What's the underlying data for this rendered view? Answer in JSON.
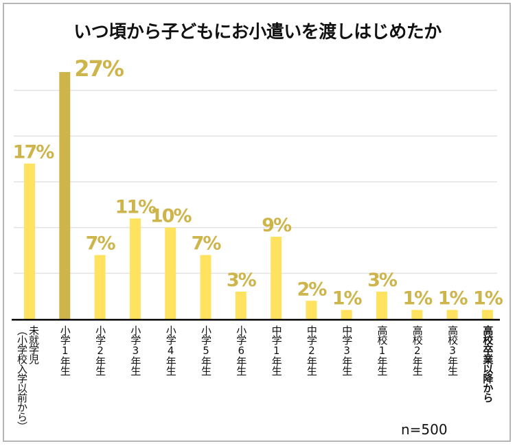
{
  "chart_data": {
    "type": "bar",
    "title": "いつ頃から子どもにお小遣いを渡しはじめたか",
    "categories": [
      [
        "未就学児",
        "（小学校入学以前から）"
      ],
      [
        "小学1年生"
      ],
      [
        "小学2年生"
      ],
      [
        "小学3年生"
      ],
      [
        "小学4年生"
      ],
      [
        "小学5年生"
      ],
      [
        "小学6年生"
      ],
      [
        "中学1年生"
      ],
      [
        "中学2年生"
      ],
      [
        "中学3年生"
      ],
      [
        "高校1年生"
      ],
      [
        "高校2年生"
      ],
      [
        "高校3年生"
      ],
      [
        "高校卒業以降から"
      ]
    ],
    "values": [
      17,
      27,
      7,
      11,
      10,
      7,
      3,
      9,
      2,
      1,
      3,
      1,
      1,
      1
    ],
    "data_labels": [
      "17%",
      "27%",
      "7%",
      "11%",
      "10%",
      "7%",
      "3%",
      "9%",
      "2%",
      "1%",
      "3%",
      "1%",
      "1%",
      "1%"
    ],
    "highlight_index": 1,
    "ylim": [
      0,
      27
    ],
    "gridlines": [
      5,
      10,
      15,
      20,
      25
    ],
    "grid": true,
    "y_axis_labels": false,
    "note": "n=500",
    "colors": {
      "bar": "#FFE25F",
      "highlight": "#CDB54B",
      "label": "#CDB54B",
      "grid": "#e2e2e2",
      "axis": "#000000"
    }
  }
}
